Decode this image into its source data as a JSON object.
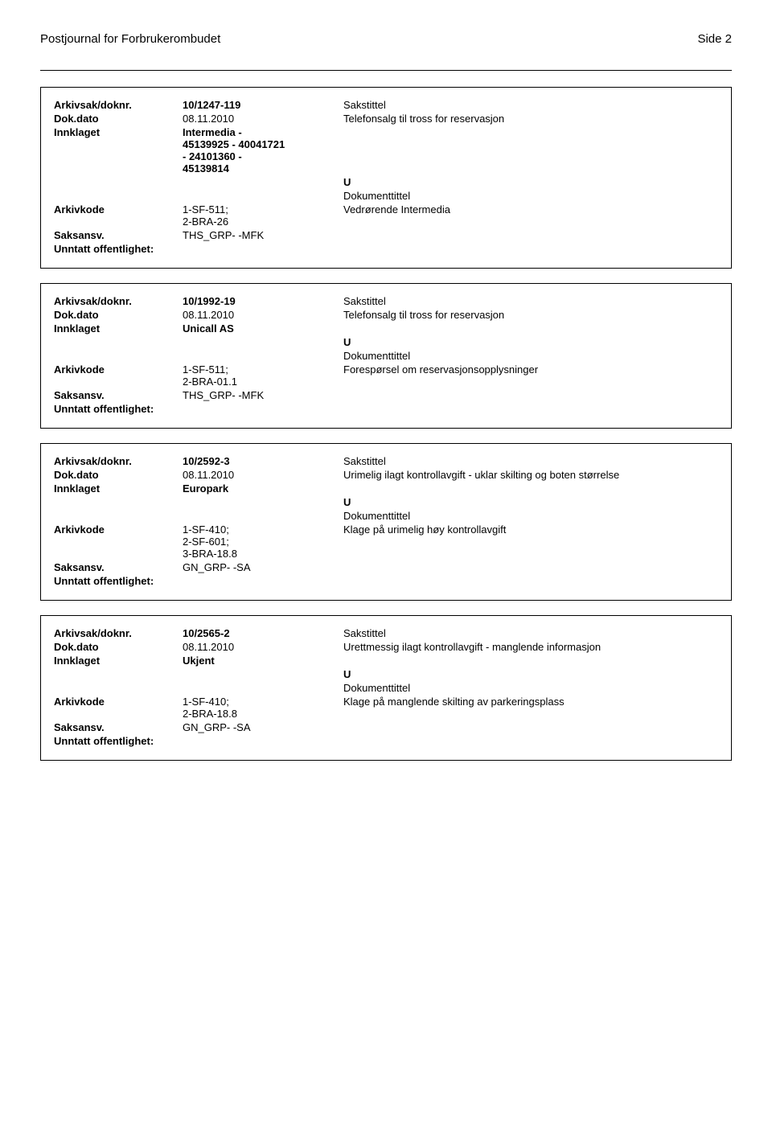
{
  "header": {
    "journal_title": "Postjournal for Forbrukerombudet",
    "page_label": "Side 2"
  },
  "records": [
    {
      "arkivsak_label": "Arkivsak/doknr.",
      "arkivsak_value": "10/1247-119",
      "sakstittel_label": "Sakstittel",
      "dokdato_label": "Dok.dato",
      "dokdato_value": "08.11.2010",
      "sakstittel_value": "Telefonsalg til tross for reservasjon",
      "innklaget_label": "Innklaget",
      "innklaget_value": "Intermedia -\n45139925 - 40041721\n- 24101360 -\n45139814",
      "doc_type": "U",
      "dokumenttittel_label": "Dokumenttittel",
      "arkivkode_label": "Arkivkode",
      "arkivkode_value": "1-SF-511;\n2-BRA-26",
      "dokumenttittel_value": "Vedrørende Intermedia",
      "saksansv_label": "Saksansv.",
      "saksansv_value": "THS_GRP- -MFK",
      "unntatt_label": "Unntatt offentlighet:"
    },
    {
      "arkivsak_label": "Arkivsak/doknr.",
      "arkivsak_value": "10/1992-19",
      "sakstittel_label": "Sakstittel",
      "dokdato_label": "Dok.dato",
      "dokdato_value": "08.11.2010",
      "sakstittel_value": "Telefonsalg til tross for reservasjon",
      "innklaget_label": "Innklaget",
      "innklaget_value": "Unicall  AS",
      "doc_type": "U",
      "dokumenttittel_label": "Dokumenttittel",
      "arkivkode_label": "Arkivkode",
      "arkivkode_value": "1-SF-511;\n2-BRA-01.1",
      "dokumenttittel_value": "Forespørsel om reservasjonsopplysninger",
      "saksansv_label": "Saksansv.",
      "saksansv_value": "THS_GRP- -MFK",
      "unntatt_label": "Unntatt offentlighet:"
    },
    {
      "arkivsak_label": "Arkivsak/doknr.",
      "arkivsak_value": "10/2592-3",
      "sakstittel_label": "Sakstittel",
      "dokdato_label": "Dok.dato",
      "dokdato_value": "08.11.2010",
      "sakstittel_value": "Urimelig ilagt kontrollavgift - uklar skilting og boten størrelse",
      "innklaget_label": "Innklaget",
      "innklaget_value": "Europark",
      "doc_type": "U",
      "dokumenttittel_label": "Dokumenttittel",
      "arkivkode_label": "Arkivkode",
      "arkivkode_value": "1-SF-410;\n2-SF-601;\n3-BRA-18.8",
      "dokumenttittel_value": "Klage på urimelig høy kontrollavgift",
      "saksansv_label": "Saksansv.",
      "saksansv_value": "GN_GRP- -SA",
      "unntatt_label": "Unntatt offentlighet:"
    },
    {
      "arkivsak_label": "Arkivsak/doknr.",
      "arkivsak_value": "10/2565-2",
      "sakstittel_label": "Sakstittel",
      "dokdato_label": "Dok.dato",
      "dokdato_value": "08.11.2010",
      "sakstittel_value": "Urettmessig ilagt kontrollavgift - manglende informasjon",
      "innklaget_label": "Innklaget",
      "innklaget_value": "Ukjent",
      "doc_type": "U",
      "dokumenttittel_label": "Dokumenttittel",
      "arkivkode_label": "Arkivkode",
      "arkivkode_value": "1-SF-410;\n2-BRA-18.8",
      "dokumenttittel_value": "Klage på manglende skilting av parkeringsplass",
      "saksansv_label": "Saksansv.",
      "saksansv_value": "GN_GRP- -SA",
      "unntatt_label": "Unntatt offentlighet:"
    }
  ]
}
